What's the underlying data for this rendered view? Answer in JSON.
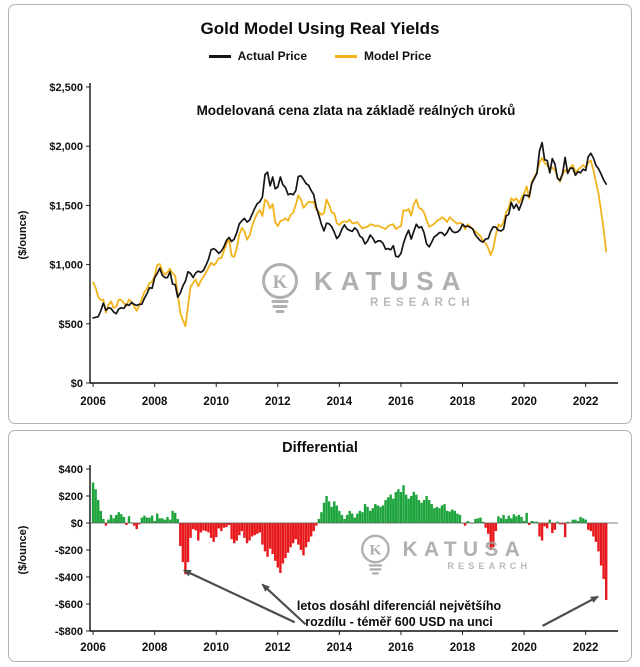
{
  "top_chart": {
    "title": "Gold Model Using Real Yields",
    "annotation": "Modelovaná cena zlata na základě reálných úroků",
    "legend": [
      {
        "label": "Actual Price",
        "color": "#161616"
      },
      {
        "label": "Model Price",
        "color": "#F2B31C"
      }
    ],
    "watermark": {
      "brand": "KATUSA",
      "sub": "RESEARCH",
      "monogram": "K"
    }
  },
  "bottom_chart": {
    "title": "Differential",
    "annotation_lines": [
      "letos dosáhl diferenciál největšího",
      "rozdílu - téměř 600 USD na unci"
    ],
    "watermark": {
      "brand": "KATUSA",
      "sub": "RESEARCH",
      "monogram": "K"
    }
  },
  "chart_data": [
    {
      "type": "line",
      "title": "Gold Model Using Real Yields",
      "ylabel": "($/ounce)",
      "xlabel": "",
      "xlim": [
        2005.9,
        2023.05
      ],
      "ylim": [
        0,
        2500
      ],
      "yticks": [
        0,
        500,
        1000,
        1500,
        2000,
        2500
      ],
      "ytick_labels": [
        "$0",
        "$500",
        "$1,000",
        "$1,500",
        "$2,000",
        "$2,500"
      ],
      "xticks": [
        2006,
        2008,
        2010,
        2012,
        2014,
        2016,
        2018,
        2020,
        2022
      ],
      "x_start": 2006,
      "x_step": 0.0833333,
      "grid": false,
      "legend_position": "top",
      "series": [
        {
          "name": "Actual Price",
          "color": "#161616",
          "width": 1.7,
          "values": [
            550,
            555,
            560,
            610,
            675,
            615,
            635,
            630,
            600,
            585,
            625,
            635,
            630,
            665,
            655,
            680,
            665,
            655,
            665,
            665,
            715,
            755,
            805,
            800,
            890,
            925,
            970,
            910,
            890,
            890,
            940,
            835,
            830,
            725,
            760,
            820,
            860,
            940,
            925,
            890,
            930,
            945,
            935,
            950,
            995,
            1045,
            1125,
            1135,
            1120,
            1095,
            1115,
            1150,
            1205,
            1230,
            1195,
            1215,
            1270,
            1345,
            1370,
            1390,
            1360,
            1375,
            1425,
            1475,
            1515,
            1530,
            1570,
            1760,
            1780,
            1665,
            1740,
            1640,
            1655,
            1740,
            1675,
            1650,
            1590,
            1600,
            1590,
            1625,
            1745,
            1750,
            1720,
            1685,
            1670,
            1625,
            1590,
            1485,
            1415,
            1340,
            1285,
            1350,
            1345,
            1320,
            1275,
            1220,
            1245,
            1300,
            1335,
            1300,
            1290,
            1280,
            1310,
            1290,
            1240,
            1225,
            1175,
            1200,
            1250,
            1225,
            1185,
            1200,
            1200,
            1180,
            1130,
            1135,
            1125,
            1160,
            1070,
            1065,
            1095,
            1180,
            1245,
            1290,
            1215,
            1280,
            1340,
            1310,
            1320,
            1270,
            1175,
            1150,
            1190,
            1235,
            1250,
            1270,
            1270,
            1245,
            1270,
            1315,
            1280,
            1270,
            1275,
            1295,
            1340,
            1320,
            1325,
            1315,
            1300,
            1250,
            1225,
            1200,
            1190,
            1215,
            1220,
            1280,
            1320,
            1315,
            1290,
            1285,
            1300,
            1410,
            1425,
            1525,
            1475,
            1510,
            1460,
            1515,
            1585,
            1585,
            1575,
            1685,
            1730,
            1770,
            1960,
            2030,
            1885,
            1880,
            1775,
            1895,
            1850,
            1730,
            1710,
            1770,
            1905,
            1770,
            1815,
            1815,
            1755,
            1785,
            1775,
            1805,
            1795,
            1910,
            1940,
            1900,
            1840,
            1810,
            1765,
            1715,
            1680
          ]
        },
        {
          "name": "Model Price",
          "color": "#F2B31C",
          "width": 1.8,
          "values": [
            850,
            805,
            730,
            700,
            705,
            595,
            660,
            690,
            635,
            645,
            705,
            700,
            675,
            650,
            705,
            685,
            645,
            610,
            655,
            705,
            770,
            795,
            845,
            855,
            905,
            995,
            1005,
            945,
            915,
            935,
            965,
            925,
            905,
            755,
            590,
            530,
            480,
            650,
            815,
            845,
            875,
            815,
            865,
            895,
            935,
            975,
            1015,
            995,
            1015,
            1055,
            1055,
            1115,
            1175,
            1215,
            1075,
            1065,
            1140,
            1255,
            1310,
            1280,
            1210,
            1245,
            1325,
            1385,
            1435,
            1460,
            1410,
            1550,
            1530,
            1475,
            1510,
            1360,
            1325,
            1370,
            1375,
            1390,
            1370,
            1420,
            1440,
            1505,
            1585,
            1550,
            1480,
            1505,
            1530,
            1525,
            1530,
            1465,
            1445,
            1420,
            1435,
            1550,
            1505,
            1440,
            1435,
            1350,
            1335,
            1360,
            1365,
            1360,
            1380,
            1350,
            1350,
            1360,
            1330,
            1305,
            1315,
            1320,
            1340,
            1335,
            1325,
            1330,
            1320,
            1310,
            1300,
            1325,
            1335,
            1340,
            1300,
            1315,
            1325,
            1460,
            1455,
            1470,
            1415,
            1510,
            1550,
            1480,
            1470,
            1440,
            1375,
            1320,
            1330,
            1345,
            1370,
            1380,
            1400,
            1385,
            1360,
            1400,
            1380,
            1360,
            1345,
            1355,
            1340,
            1300,
            1340,
            1320,
            1300,
            1280,
            1260,
            1240,
            1200,
            1180,
            1140,
            1080,
            1140,
            1255,
            1340,
            1320,
            1360,
            1440,
            1480,
            1560,
            1540,
            1560,
            1520,
            1560,
            1600,
            1660,
            1560,
            1700,
            1740,
            1780,
            1860,
            1900,
            1860,
            1840,
            1800,
            1820,
            1800,
            1740,
            1700,
            1760,
            1800,
            1780,
            1820,
            1840,
            1780,
            1800,
            1820,
            1840,
            1820,
            1860,
            1880,
            1800,
            1700,
            1600,
            1450,
            1300,
            1110
          ]
        }
      ]
    },
    {
      "type": "bar",
      "title": "Differential",
      "ylabel": "($/ounce)",
      "xlabel": "",
      "xlim": [
        2005.9,
        2023.05
      ],
      "ylim": [
        -800,
        400
      ],
      "yticks": [
        400,
        200,
        0,
        -200,
        -400,
        -600,
        -800
      ],
      "ytick_labels": [
        "$400",
        "$200",
        "$0",
        "-$200",
        "-$400",
        "-$600",
        "-$800"
      ],
      "xticks": [
        2006,
        2008,
        2010,
        2012,
        2014,
        2016,
        2018,
        2020,
        2022
      ],
      "x_start": 2006,
      "x_step": 0.0833333,
      "grid": false,
      "positive_color": "#1DA43C",
      "negative_color": "#E8191C",
      "values": [
        300,
        250,
        170,
        90,
        30,
        -20,
        25,
        60,
        35,
        60,
        80,
        65,
        45,
        -15,
        50,
        5,
        -20,
        -45,
        -10,
        40,
        55,
        40,
        40,
        55,
        15,
        70,
        35,
        35,
        25,
        45,
        25,
        90,
        75,
        30,
        -170,
        -290,
        -380,
        -290,
        -110,
        -45,
        -55,
        -130,
        -70,
        -55,
        -60,
        -70,
        -110,
        -140,
        -105,
        -40,
        -60,
        -35,
        -30,
        -15,
        -120,
        -150,
        -130,
        -90,
        -60,
        -110,
        -150,
        -130,
        -100,
        -90,
        -80,
        -70,
        -160,
        -210,
        -250,
        -190,
        -230,
        -280,
        -330,
        -370,
        -300,
        -260,
        -220,
        -180,
        -150,
        -120,
        -160,
        -200,
        -240,
        -180,
        -140,
        -100,
        -60,
        -20,
        30,
        80,
        150,
        200,
        160,
        120,
        160,
        130,
        90,
        60,
        30,
        60,
        90,
        70,
        40,
        70,
        90,
        80,
        140,
        120,
        90,
        110,
        140,
        130,
        120,
        130,
        170,
        190,
        210,
        180,
        230,
        250,
        230,
        280,
        210,
        180,
        200,
        230,
        210,
        170,
        150,
        170,
        200,
        170,
        140,
        110,
        120,
        110,
        130,
        140,
        90,
        85,
        100,
        90,
        70,
        60,
        0,
        -20,
        15,
        5,
        0,
        30,
        35,
        40,
        10,
        -35,
        -80,
        -200,
        -180,
        -60,
        50,
        35,
        60,
        30,
        55,
        35,
        65,
        50,
        60,
        45,
        15,
        75,
        -15,
        15,
        10,
        10,
        -100,
        -130,
        -25,
        -40,
        25,
        -75,
        -50,
        10,
        -10,
        -10,
        -105,
        10,
        5,
        25,
        25,
        15,
        45,
        35,
        25,
        -50,
        -60,
        -100,
        -140,
        -210,
        -315,
        -415,
        -570
      ],
      "arrows": [
        {
          "from": [
            2012.55,
            -735
          ],
          "to": [
            2008.95,
            -350
          ]
        },
        {
          "from": [
            2012.9,
            -750
          ],
          "to": [
            2011.5,
            -455
          ]
        },
        {
          "from": [
            2020.6,
            -762
          ],
          "to": [
            2022.4,
            -545
          ]
        }
      ]
    }
  ]
}
